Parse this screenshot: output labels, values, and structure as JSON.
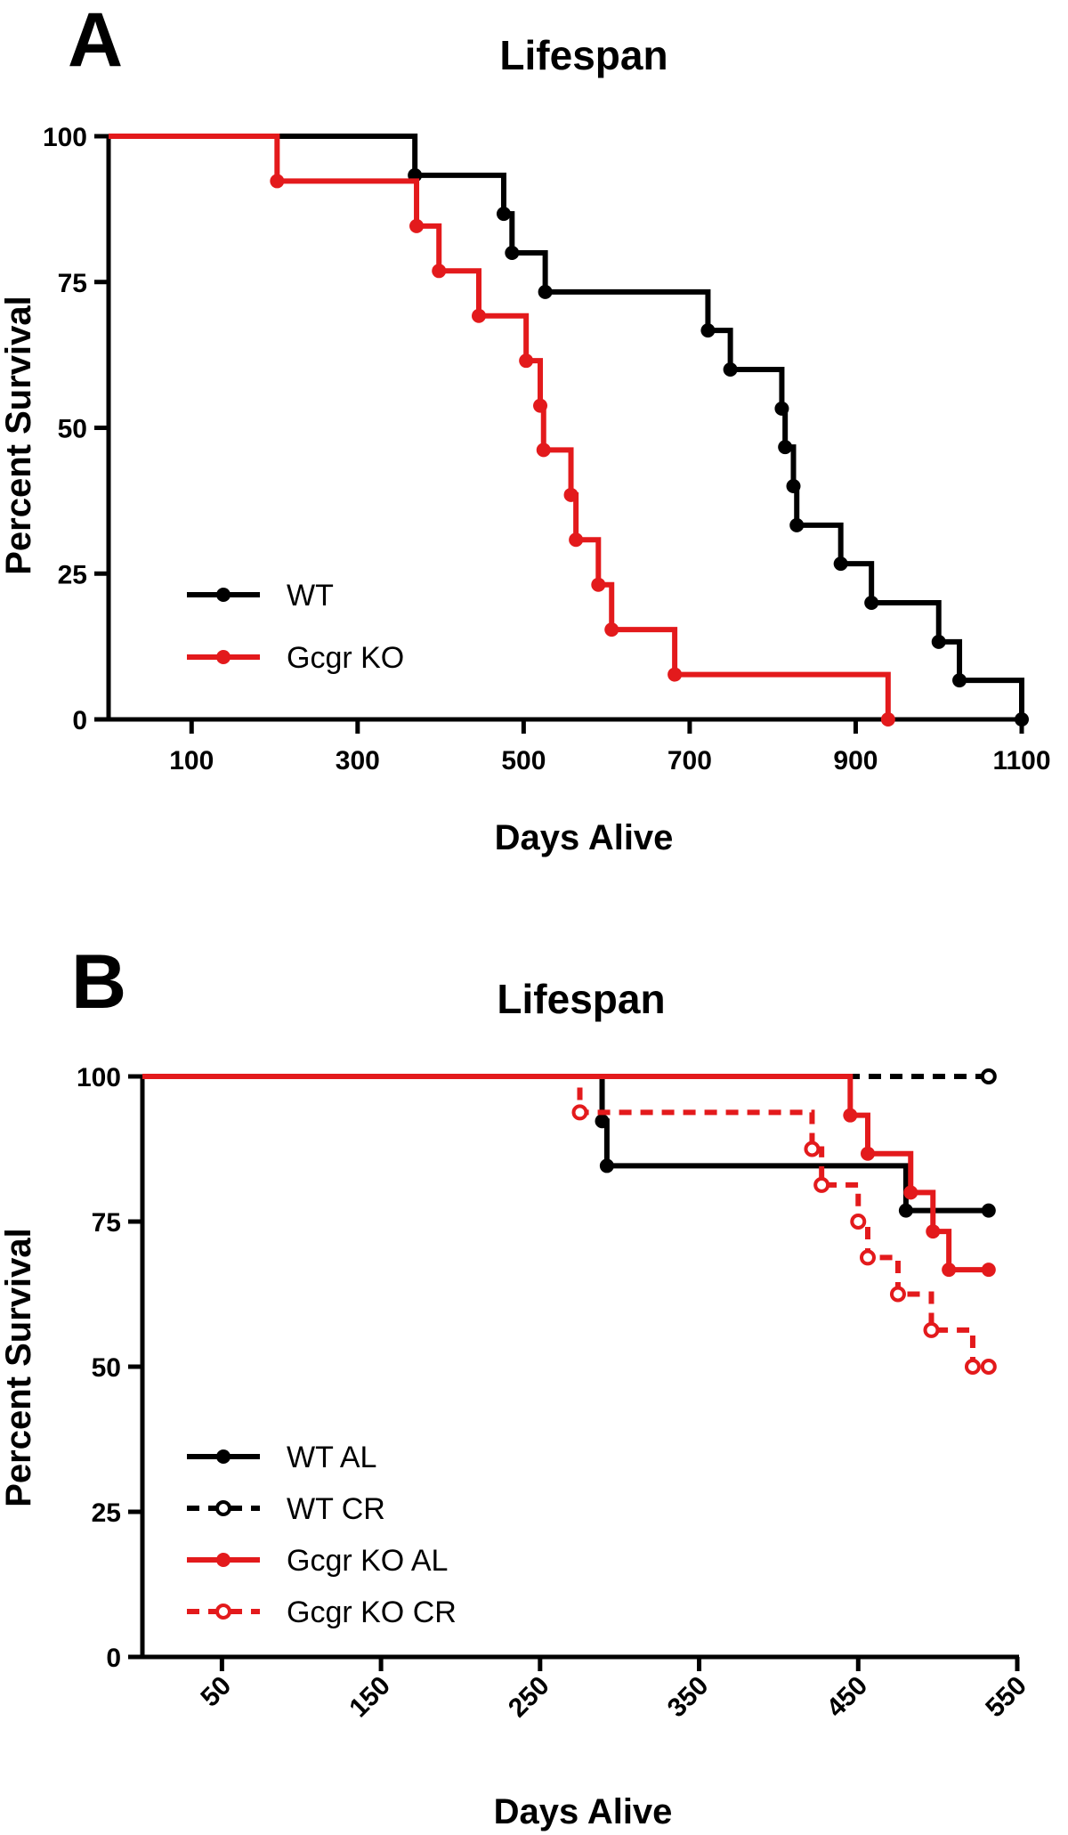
{
  "chart_data": [
    {
      "panel": "A",
      "type": "line",
      "title": "Lifespan",
      "xlabel": "Days Alive",
      "ylabel": "Percent Survival",
      "xlim": [
        0,
        1100
      ],
      "ylim": [
        0,
        100
      ],
      "xticks": [
        100,
        300,
        500,
        700,
        900,
        1100
      ],
      "yticks": [
        0,
        25,
        50,
        75,
        100
      ],
      "legend_position": "bottom-left",
      "series": [
        {
          "name": "WT",
          "color": "#000000",
          "dashed": false,
          "marker": "filled",
          "x": [
            0,
            369,
            476,
            486,
            526,
            722,
            749,
            811,
            815,
            825,
            829,
            882,
            919,
            1000,
            1025,
            1100
          ],
          "y": [
            100,
            93.3,
            86.7,
            80,
            73.3,
            66.7,
            60,
            53.3,
            46.7,
            40,
            33.3,
            26.7,
            20,
            13.3,
            6.7,
            0
          ]
        },
        {
          "name": "Gcgr KO",
          "color": "#e31a1c",
          "dashed": false,
          "marker": "filled",
          "x": [
            0,
            203,
            371,
            398,
            446,
            503,
            520,
            524,
            557,
            563,
            590,
            606,
            682,
            939
          ],
          "y": [
            100,
            92.3,
            84.6,
            76.9,
            69.2,
            61.5,
            53.8,
            46.2,
            38.5,
            30.8,
            23.1,
            15.4,
            7.7,
            0
          ]
        }
      ]
    },
    {
      "panel": "B",
      "type": "line",
      "title": "Lifespan",
      "xlabel": "Days Alive",
      "ylabel": "Percent Survival",
      "xlim": [
        0,
        550
      ],
      "ylim": [
        0,
        100
      ],
      "xticks": [
        50,
        150,
        250,
        350,
        450,
        550
      ],
      "yticks": [
        0,
        25,
        50,
        75,
        100
      ],
      "legend_position": "bottom-left",
      "series": [
        {
          "name": "WT AL",
          "color": "#000000",
          "dashed": false,
          "marker": "filled",
          "x": [
            0,
            289,
            292,
            480,
            532
          ],
          "y": [
            100,
            92.3,
            84.6,
            76.9,
            76.9
          ]
        },
        {
          "name": "WT CR",
          "color": "#000000",
          "dashed": true,
          "marker": "open",
          "x": [
            0,
            532
          ],
          "y": [
            100,
            100
          ]
        },
        {
          "name": "Gcgr KO AL",
          "color": "#e31a1c",
          "dashed": false,
          "marker": "filled",
          "x": [
            0,
            445,
            456,
            483,
            497,
            507,
            532
          ],
          "y": [
            100,
            93.3,
            86.7,
            80,
            73.3,
            66.7,
            66.7
          ]
        },
        {
          "name": "Gcgr KO CR",
          "color": "#e31a1c",
          "dashed": true,
          "marker": "open",
          "x": [
            0,
            275,
            421,
            427,
            450,
            456,
            475,
            496,
            522,
            532
          ],
          "y": [
            100,
            93.8,
            87.5,
            81.3,
            75,
            68.8,
            62.5,
            56.3,
            50,
            50
          ]
        }
      ]
    }
  ]
}
